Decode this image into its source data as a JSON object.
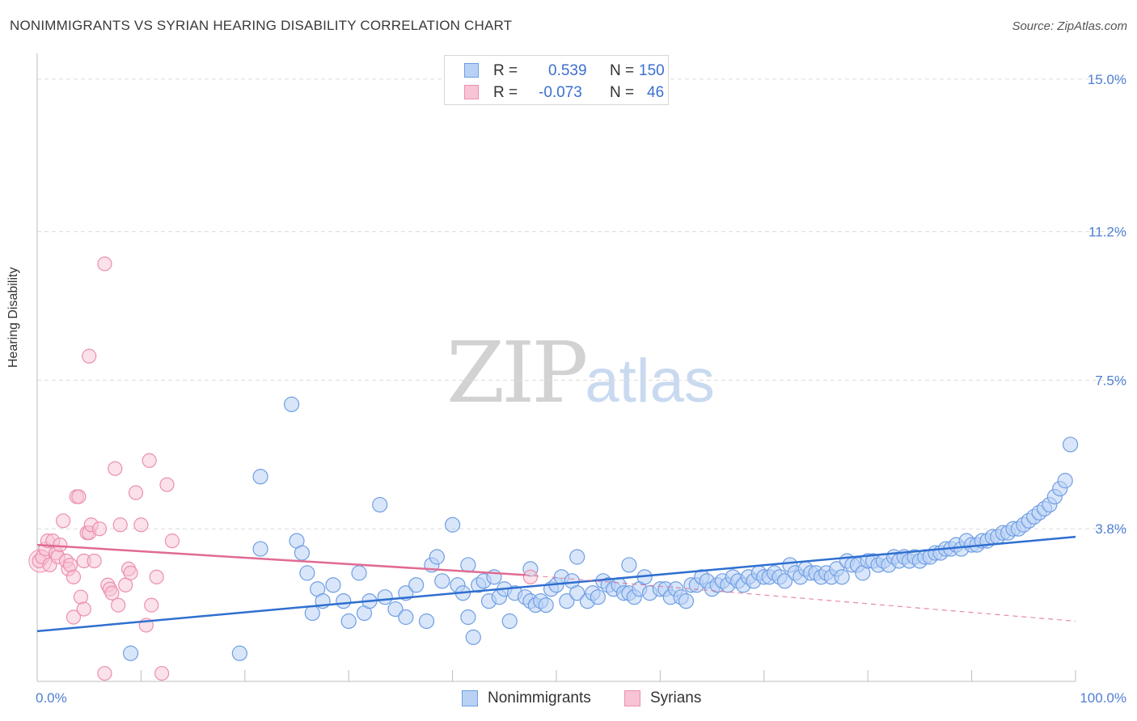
{
  "title": "NONIMMIGRANTS VS SYRIAN HEARING DISABILITY CORRELATION CHART",
  "source": "Source: ZipAtlas.com",
  "watermark": {
    "part1": "ZIP",
    "part2": "atlas"
  },
  "legend": {
    "series1": {
      "r_label": "R =",
      "r_value": "0.539",
      "n_label": "N =",
      "n_value": "150"
    },
    "series2": {
      "r_label": "R =",
      "r_value": "-0.073",
      "n_label": "N =",
      "n_value": "46"
    }
  },
  "colors": {
    "nonimmigrants_fill": "#b9d1f5",
    "nonimmigrants_stroke": "#6f9ee3",
    "nonimmigrants_line": "#2f6fd0",
    "syrians_fill": "#f8c3d4",
    "syrians_stroke": "#ec8fb0",
    "syrians_line": "#e06b93"
  },
  "chart_data": {
    "type": "scatter",
    "title": "NONIMMIGRANTS VS SYRIAN HEARING DISABILITY CORRELATION CHART",
    "xlabel": "",
    "ylabel": "Hearing Disability",
    "xlim": [
      0,
      100
    ],
    "ylim": [
      0,
      15.4
    ],
    "x_tick_labels": [
      "0.0%",
      "100.0%"
    ],
    "y_ticks": [
      3.8,
      7.5,
      11.2,
      15.0
    ],
    "y_tick_labels": [
      "3.8%",
      "7.5%",
      "11.2%",
      "15.0%"
    ],
    "legend": [
      "Nonimmigrants",
      "Syrians"
    ],
    "series": [
      {
        "name": "Nonimmigrants",
        "trend": {
          "x": [
            0,
            100
          ],
          "y": [
            1.25,
            3.6
          ]
        },
        "points": [
          [
            9,
            0.7
          ],
          [
            19.5,
            0.7
          ],
          [
            21.5,
            5.1
          ],
          [
            24.5,
            6.9
          ],
          [
            21.5,
            3.3
          ],
          [
            25,
            3.5
          ],
          [
            25.5,
            3.2
          ],
          [
            26,
            2.7
          ],
          [
            26.5,
            1.7
          ],
          [
            27,
            2.3
          ],
          [
            27.5,
            2.0
          ],
          [
            28.5,
            2.4
          ],
          [
            29.5,
            2.0
          ],
          [
            30,
            1.5
          ],
          [
            31,
            2.7
          ],
          [
            31.5,
            1.7
          ],
          [
            32,
            2.0
          ],
          [
            33,
            4.4
          ],
          [
            33.5,
            2.1
          ],
          [
            34.5,
            1.8
          ],
          [
            35.5,
            1.6
          ],
          [
            35.5,
            2.2
          ],
          [
            36.5,
            2.4
          ],
          [
            37.5,
            1.5
          ],
          [
            38,
            2.9
          ],
          [
            38.5,
            3.1
          ],
          [
            39,
            2.5
          ],
          [
            40,
            3.9
          ],
          [
            40.5,
            2.4
          ],
          [
            41,
            2.2
          ],
          [
            41.5,
            2.9
          ],
          [
            41.5,
            1.6
          ],
          [
            42,
            1.1
          ],
          [
            42.5,
            2.4
          ],
          [
            43,
            2.5
          ],
          [
            43.5,
            2.0
          ],
          [
            44,
            2.6
          ],
          [
            44.5,
            2.1
          ],
          [
            45,
            2.3
          ],
          [
            45.5,
            1.5
          ],
          [
            46,
            2.2
          ],
          [
            47,
            2.1
          ],
          [
            47.5,
            2.0
          ],
          [
            47.5,
            2.8
          ],
          [
            48,
            1.9
          ],
          [
            48.5,
            2.0
          ],
          [
            49,
            1.9
          ],
          [
            49.5,
            2.3
          ],
          [
            50,
            2.4
          ],
          [
            50.5,
            2.6
          ],
          [
            51,
            2.0
          ],
          [
            51.5,
            2.5
          ],
          [
            52,
            2.2
          ],
          [
            52,
            3.1
          ],
          [
            53,
            2.0
          ],
          [
            53.5,
            2.2
          ],
          [
            54,
            2.1
          ],
          [
            54.5,
            2.5
          ],
          [
            55,
            2.4
          ],
          [
            55.5,
            2.3
          ],
          [
            56,
            2.4
          ],
          [
            56.5,
            2.2
          ],
          [
            57,
            2.2
          ],
          [
            57,
            2.9
          ],
          [
            57.5,
            2.1
          ],
          [
            58,
            2.3
          ],
          [
            58.5,
            2.6
          ],
          [
            59,
            2.2
          ],
          [
            60,
            2.3
          ],
          [
            60.5,
            2.3
          ],
          [
            61,
            2.1
          ],
          [
            61.5,
            2.3
          ],
          [
            62,
            2.1
          ],
          [
            62.5,
            2.0
          ],
          [
            63,
            2.4
          ],
          [
            63.5,
            2.4
          ],
          [
            64,
            2.6
          ],
          [
            64.5,
            2.5
          ],
          [
            65,
            2.3
          ],
          [
            65.5,
            2.4
          ],
          [
            66,
            2.5
          ],
          [
            66.5,
            2.4
          ],
          [
            67,
            2.6
          ],
          [
            67.5,
            2.5
          ],
          [
            68,
            2.4
          ],
          [
            68.5,
            2.6
          ],
          [
            69,
            2.5
          ],
          [
            69.5,
            2.7
          ],
          [
            70,
            2.6
          ],
          [
            70.5,
            2.6
          ],
          [
            71,
            2.7
          ],
          [
            71.5,
            2.6
          ],
          [
            72,
            2.5
          ],
          [
            72.5,
            2.9
          ],
          [
            73,
            2.7
          ],
          [
            73.5,
            2.6
          ],
          [
            74,
            2.8
          ],
          [
            74.5,
            2.7
          ],
          [
            75,
            2.7
          ],
          [
            75.5,
            2.6
          ],
          [
            76,
            2.7
          ],
          [
            76.5,
            2.6
          ],
          [
            77,
            2.8
          ],
          [
            77.5,
            2.6
          ],
          [
            78,
            3.0
          ],
          [
            78.5,
            2.9
          ],
          [
            79,
            2.9
          ],
          [
            79.5,
            2.7
          ],
          [
            80,
            3.0
          ],
          [
            80.5,
            3.0
          ],
          [
            81,
            2.9
          ],
          [
            81.5,
            3.0
          ],
          [
            82,
            2.9
          ],
          [
            82.5,
            3.1
          ],
          [
            83,
            3.0
          ],
          [
            83.5,
            3.1
          ],
          [
            84,
            3.0
          ],
          [
            84.5,
            3.1
          ],
          [
            85,
            3.0
          ],
          [
            85.5,
            3.1
          ],
          [
            86,
            3.1
          ],
          [
            86.5,
            3.2
          ],
          [
            87,
            3.2
          ],
          [
            87.5,
            3.3
          ],
          [
            88,
            3.3
          ],
          [
            88.5,
            3.4
          ],
          [
            89,
            3.3
          ],
          [
            89.5,
            3.5
          ],
          [
            90,
            3.4
          ],
          [
            90.5,
            3.4
          ],
          [
            91,
            3.5
          ],
          [
            91.5,
            3.5
          ],
          [
            92,
            3.6
          ],
          [
            92.5,
            3.6
          ],
          [
            93,
            3.7
          ],
          [
            93.5,
            3.7
          ],
          [
            94,
            3.8
          ],
          [
            94.5,
            3.8
          ],
          [
            95,
            3.9
          ],
          [
            95.5,
            4.0
          ],
          [
            96,
            4.1
          ],
          [
            96.5,
            4.2
          ],
          [
            97,
            4.3
          ],
          [
            97.5,
            4.4
          ],
          [
            98,
            4.6
          ],
          [
            98.5,
            4.8
          ],
          [
            99,
            5.0
          ],
          [
            99.5,
            5.9
          ]
        ]
      },
      {
        "name": "Syrians",
        "trend": {
          "x": [
            0,
            47
          ],
          "y": [
            3.4,
            2.65
          ]
        },
        "trend_extrapolated": {
          "x": [
            47,
            100
          ],
          "y": [
            2.65,
            1.5
          ]
        },
        "points": [
          [
            0.2,
            3.0
          ],
          [
            0.5,
            3.1
          ],
          [
            0.8,
            3.3
          ],
          [
            1,
            3.5
          ],
          [
            1.2,
            2.9
          ],
          [
            1.5,
            3.5
          ],
          [
            1.8,
            3.2
          ],
          [
            2,
            3.1
          ],
          [
            2.2,
            3.4
          ],
          [
            2.5,
            4.0
          ],
          [
            2.8,
            3.0
          ],
          [
            3,
            2.8
          ],
          [
            3.2,
            2.9
          ],
          [
            3.5,
            2.6
          ],
          [
            3.5,
            1.6
          ],
          [
            3.8,
            4.6
          ],
          [
            4,
            4.6
          ],
          [
            4.2,
            2.1
          ],
          [
            4.5,
            3.0
          ],
          [
            4.5,
            1.8
          ],
          [
            4.8,
            3.7
          ],
          [
            5,
            3.7
          ],
          [
            5,
            8.1
          ],
          [
            5.2,
            3.9
          ],
          [
            5.5,
            3.0
          ],
          [
            6,
            3.8
          ],
          [
            6.5,
            0.2
          ],
          [
            6.5,
            10.4
          ],
          [
            6.8,
            2.4
          ],
          [
            7,
            2.3
          ],
          [
            7.2,
            2.2
          ],
          [
            7.5,
            5.3
          ],
          [
            7.8,
            1.9
          ],
          [
            8,
            3.9
          ],
          [
            8.5,
            2.4
          ],
          [
            8.8,
            2.8
          ],
          [
            9,
            2.7
          ],
          [
            9.5,
            4.7
          ],
          [
            10,
            3.9
          ],
          [
            10.5,
            1.4
          ],
          [
            10.8,
            5.5
          ],
          [
            11,
            1.9
          ],
          [
            11.5,
            2.6
          ],
          [
            12,
            0.2
          ],
          [
            12.5,
            4.9
          ],
          [
            13,
            3.5
          ],
          [
            47.5,
            2.6
          ]
        ]
      }
    ]
  },
  "bottom_legend": {
    "item1": "Nonimmigrants",
    "item2": "Syrians"
  }
}
